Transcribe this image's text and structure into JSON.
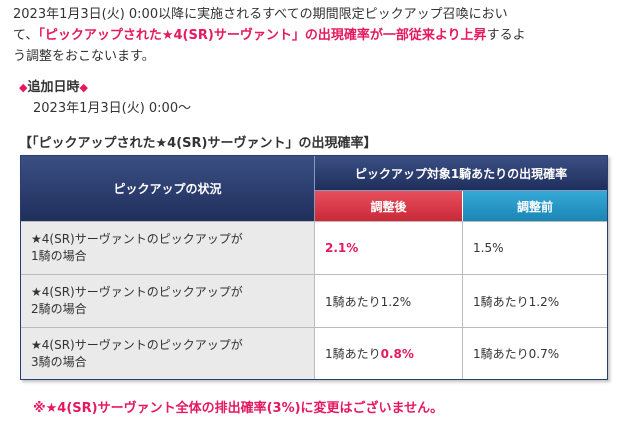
{
  "intro": {
    "line1": "2023年1月3日(火) 0:00以降に実施されるすべての期間限定ピックアップ召喚におい",
    "line2_pre": "て、",
    "line2_highlight": "「ピックアップされた★4(SR)サーヴァント」の出現確率が一部従来より上昇",
    "line2_post": "するよ",
    "line3": "う調整をおこないます。"
  },
  "added_date": {
    "label": "追加日時",
    "value": "2023年1月3日(火) 0:00～"
  },
  "table_title": "【「ピックアップされた★4(SR)サーヴァント」の出現確率】",
  "table": {
    "header_status": "ピックアップの状況",
    "header_rate": "ピックアップ対象1騎あたりの出現確率",
    "header_after": "調整後",
    "header_before": "調整前",
    "rows": [
      {
        "label_line1": "★4(SR)サーヴァントのピックアップが",
        "label_line2": "1騎の場合",
        "after_prefix": "",
        "after_value": "2.1%",
        "before": "1.5%"
      },
      {
        "label_line1": "★4(SR)サーヴァントのピックアップが",
        "label_line2": "2騎の場合",
        "after_prefix": "1騎あたり1.2%",
        "after_value": "",
        "before": "1騎あたり1.2%"
      },
      {
        "label_line1": "★4(SR)サーヴァントのピックアップが",
        "label_line2": "3騎の場合",
        "after_prefix": "1騎あたり",
        "after_value": "0.8%",
        "before": "1騎あたり0.7%"
      }
    ]
  },
  "note": "※★4(SR)サーヴァント全体の排出確率(3%)に変更はございません。"
}
